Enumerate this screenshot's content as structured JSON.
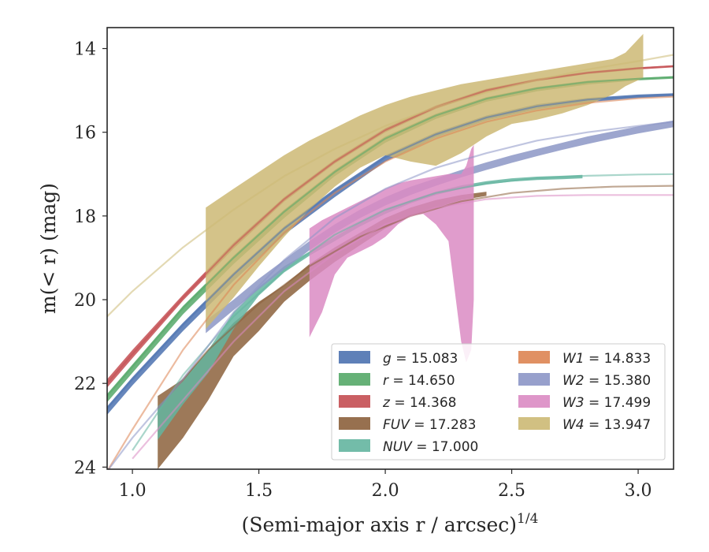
{
  "chart_data": {
    "type": "area",
    "xlabel": "(Semi-major axis r / arcsec)",
    "xlabel_exponent": "1/4",
    "ylabel": "m(< r) (mag)",
    "xlim": [
      0.9,
      3.14
    ],
    "ylim": [
      24.05,
      13.5
    ],
    "y_inverted": true,
    "x_ticks": [
      1.0,
      1.5,
      2.0,
      2.5,
      3.0
    ],
    "x_tick_labels": [
      "1.0",
      "1.5",
      "2.0",
      "2.5",
      "3.0"
    ],
    "y_ticks": [
      14,
      16,
      18,
      20,
      22,
      24
    ],
    "y_tick_labels": [
      "14",
      "16",
      "18",
      "20",
      "22",
      "24"
    ],
    "grid": false,
    "legend_placement": "lower-right",
    "series": [
      {
        "name": "g = 15.083",
        "label_var": "g",
        "label_val": "= 15.083",
        "color": "#4c72b0",
        "model": {
          "x": [
            0.9,
            1.0,
            1.2,
            1.4,
            1.6,
            1.8,
            2.0,
            2.2,
            2.4,
            2.6,
            2.8,
            3.0,
            3.14
          ],
          "y": [
            22.6,
            21.9,
            20.6,
            19.4,
            18.3,
            17.4,
            16.6,
            16.05,
            15.65,
            15.38,
            15.22,
            15.14,
            15.1
          ]
        },
        "band_x": [
          0.9,
          1.0,
          1.2,
          1.4,
          1.6,
          1.8,
          2.0,
          2.2,
          2.4,
          2.6,
          2.8,
          3.0,
          3.14
        ],
        "band_lo": [
          22.55,
          21.85,
          20.55,
          19.35,
          18.25,
          17.35,
          16.55,
          16.0,
          15.6,
          15.33,
          15.18,
          15.1,
          15.07
        ],
        "band_hi": [
          22.75,
          22.05,
          20.75,
          19.55,
          18.45,
          17.55,
          16.7,
          16.12,
          15.72,
          15.45,
          15.28,
          15.18,
          15.14
        ]
      },
      {
        "name": "r = 14.650",
        "label_var": "r",
        "label_val": "= 14.650",
        "color": "#55a868",
        "model": {
          "x": [
            0.9,
            1.0,
            1.2,
            1.4,
            1.6,
            1.8,
            2.0,
            2.2,
            2.4,
            2.6,
            2.8,
            3.0,
            3.14
          ],
          "y": [
            22.3,
            21.6,
            20.2,
            19.0,
            17.9,
            16.95,
            16.15,
            15.6,
            15.2,
            14.95,
            14.8,
            14.72,
            14.68
          ]
        },
        "band_x": [
          0.9,
          1.0,
          1.2,
          1.4,
          1.6,
          1.8,
          2.0,
          2.2,
          2.4,
          2.6,
          2.8,
          3.0,
          3.14
        ],
        "band_lo": [
          22.25,
          21.55,
          20.15,
          18.95,
          17.85,
          16.9,
          16.1,
          15.56,
          15.16,
          14.92,
          14.77,
          14.7,
          14.66
        ],
        "band_hi": [
          22.45,
          21.75,
          20.35,
          19.15,
          18.05,
          17.05,
          16.25,
          15.68,
          15.27,
          15.02,
          14.86,
          14.76,
          14.72
        ]
      },
      {
        "name": "z = 14.368",
        "label_var": "z",
        "label_val": "= 14.368",
        "color": "#c44e52",
        "model": {
          "x": [
            0.9,
            1.0,
            1.2,
            1.4,
            1.6,
            1.8,
            2.0,
            2.2,
            2.4,
            2.6,
            2.8,
            3.0,
            3.14
          ],
          "y": [
            22.0,
            21.3,
            19.95,
            18.7,
            17.6,
            16.7,
            15.95,
            15.4,
            15.0,
            14.75,
            14.58,
            14.47,
            14.42
          ]
        },
        "band_x": [
          0.9,
          1.0,
          1.2,
          1.4,
          1.6,
          1.8,
          2.0,
          2.2,
          2.4,
          2.6,
          2.8,
          3.0,
          3.14
        ],
        "band_lo": [
          21.9,
          21.2,
          19.88,
          18.64,
          17.55,
          16.65,
          15.9,
          15.36,
          14.96,
          14.72,
          14.55,
          14.45,
          14.4
        ],
        "band_hi": [
          22.1,
          21.4,
          20.02,
          18.78,
          17.66,
          16.75,
          16.0,
          15.44,
          15.04,
          14.78,
          14.61,
          14.5,
          14.45
        ]
      },
      {
        "name": "FUV = 17.283",
        "label_var": "FUV",
        "label_val": "= 17.283",
        "color": "#8c613c",
        "model": {
          "x": [
            1.1,
            1.3,
            1.5,
            1.7,
            1.9,
            2.1,
            2.3,
            2.5,
            2.7,
            2.9,
            3.14
          ],
          "y": [
            22.6,
            21.2,
            20.1,
            19.2,
            18.5,
            18.0,
            17.65,
            17.45,
            17.35,
            17.3,
            17.28
          ]
        },
        "band_x": [
          1.1,
          1.2,
          1.3,
          1.4,
          1.5,
          1.6,
          1.7,
          1.8,
          1.9,
          2.0,
          2.1,
          2.2,
          2.3,
          2.4
        ],
        "band_lo": [
          22.3,
          21.9,
          21.2,
          20.55,
          20.05,
          19.65,
          19.15,
          18.75,
          18.4,
          18.05,
          17.8,
          17.62,
          17.5,
          17.42
        ],
        "band_hi": [
          24.05,
          23.3,
          22.4,
          21.35,
          20.75,
          20.05,
          19.55,
          19.1,
          18.7,
          18.3,
          18.0,
          17.8,
          17.62,
          17.52
        ]
      },
      {
        "name": "NUV = 17.000",
        "label_var": "NUV",
        "label_val": "= 17.000",
        "color": "#64b5a0",
        "model": {
          "x": [
            1.0,
            1.2,
            1.4,
            1.6,
            1.8,
            2.0,
            2.2,
            2.4,
            2.6,
            2.8,
            3.0,
            3.14
          ],
          "y": [
            23.6,
            21.8,
            20.4,
            19.3,
            18.45,
            17.85,
            17.45,
            17.22,
            17.1,
            17.04,
            17.01,
            17.0
          ]
        },
        "band_x": [
          1.1,
          1.2,
          1.3,
          1.4,
          1.5,
          1.6,
          1.7,
          1.8,
          1.9,
          2.0,
          2.1,
          2.2,
          2.3,
          2.4,
          2.5,
          2.6,
          2.7,
          2.78
        ],
        "band_lo": [
          22.55,
          21.95,
          21.2,
          20.3,
          19.7,
          19.2,
          18.85,
          18.5,
          18.15,
          17.85,
          17.62,
          17.42,
          17.27,
          17.17,
          17.1,
          17.06,
          17.04,
          17.02
        ],
        "band_hi": [
          23.35,
          22.5,
          21.75,
          20.7,
          19.9,
          19.35,
          18.95,
          18.6,
          18.25,
          17.95,
          17.7,
          17.5,
          17.35,
          17.25,
          17.18,
          17.14,
          17.12,
          17.1
        ]
      },
      {
        "name": "W1 = 14.833",
        "label_var": "W1",
        "label_val": "= 14.833",
        "color": "#dd8452",
        "model": {
          "x": [
            0.9,
            1.0,
            1.2,
            1.4,
            1.6,
            1.8,
            2.0,
            2.2,
            2.4,
            2.6,
            2.8,
            3.0,
            3.14
          ],
          "y": [
            24.1,
            23.1,
            21.2,
            19.65,
            18.4,
            17.45,
            16.7,
            16.15,
            15.75,
            15.48,
            15.3,
            15.19,
            15.15
          ]
        },
        "band_x": [],
        "band_lo": [],
        "band_hi": []
      },
      {
        "name": "W2 = 15.380",
        "label_var": "W2",
        "label_val": "= 15.380",
        "color": "#8c96c6",
        "model": {
          "x": [
            0.9,
            1.0,
            1.2,
            1.4,
            1.6,
            1.8,
            2.0,
            2.2,
            2.4,
            2.6,
            2.8,
            3.0,
            3.14
          ],
          "y": [
            24.1,
            23.3,
            21.9,
            20.3,
            19.05,
            18.05,
            17.35,
            16.85,
            16.5,
            16.2,
            16.0,
            15.85,
            15.75
          ]
        },
        "band_x": [
          1.29,
          1.4,
          1.5,
          1.6,
          1.7,
          1.8,
          1.9,
          2.0,
          2.1,
          2.2,
          2.3,
          2.4,
          2.5,
          2.6,
          2.7,
          2.8,
          2.9,
          3.0,
          3.14
        ],
        "band_lo": [
          20.5,
          20.0,
          19.5,
          19.05,
          18.6,
          18.2,
          17.85,
          17.55,
          17.3,
          17.1,
          16.9,
          16.72,
          16.55,
          16.4,
          16.25,
          16.1,
          15.98,
          15.86,
          15.72
        ],
        "band_hi": [
          20.8,
          20.25,
          19.75,
          19.28,
          18.82,
          18.4,
          18.05,
          17.75,
          17.5,
          17.28,
          17.08,
          16.9,
          16.73,
          16.57,
          16.42,
          16.28,
          16.15,
          16.03,
          15.88
        ]
      },
      {
        "name": "W3 = 17.499",
        "label_var": "W3",
        "label_val": "= 17.499",
        "color": "#da8bc3",
        "model": {
          "x": [
            1.0,
            1.2,
            1.4,
            1.6,
            1.8,
            2.0,
            2.2,
            2.4,
            2.6,
            2.8,
            3.0,
            3.14
          ],
          "y": [
            23.8,
            22.4,
            21.0,
            19.8,
            18.9,
            18.2,
            17.8,
            17.6,
            17.52,
            17.5,
            17.5,
            17.5
          ]
        },
        "band_x": [
          1.7,
          1.75,
          1.8,
          1.85,
          1.9,
          1.95,
          2.0,
          2.05,
          2.1,
          2.15,
          2.2,
          2.25,
          2.3,
          2.32,
          2.34,
          2.35
        ],
        "band_lo": [
          18.3,
          18.1,
          17.95,
          17.8,
          17.65,
          17.5,
          17.35,
          17.22,
          17.15,
          17.1,
          17.05,
          17.0,
          17.0,
          16.8,
          16.4,
          16.3
        ],
        "band_hi": [
          20.9,
          20.3,
          19.4,
          19.0,
          18.85,
          18.7,
          18.5,
          18.2,
          18.0,
          17.95,
          18.2,
          18.6,
          21.0,
          21.5,
          21.2,
          20.0
        ]
      },
      {
        "name": "W4 = 13.947",
        "label_var": "W4",
        "label_val": "= 13.947",
        "color": "#ccb974",
        "model": {
          "x": [
            0.9,
            1.0,
            1.2,
            1.4,
            1.6,
            1.8,
            2.0,
            2.2,
            2.4,
            2.6,
            2.8,
            3.0,
            3.14
          ],
          "y": [
            20.4,
            19.8,
            18.75,
            17.85,
            17.05,
            16.4,
            15.85,
            15.4,
            15.05,
            14.75,
            14.5,
            14.3,
            14.15
          ]
        },
        "band_x": [
          1.29,
          1.4,
          1.5,
          1.6,
          1.7,
          1.8,
          1.9,
          2.0,
          2.1,
          2.2,
          2.3,
          2.4,
          2.5,
          2.6,
          2.7,
          2.8,
          2.9,
          2.95,
          3.02
        ],
        "band_lo": [
          17.8,
          17.35,
          16.95,
          16.55,
          16.2,
          15.9,
          15.6,
          15.35,
          15.15,
          15.0,
          14.85,
          14.75,
          14.65,
          14.55,
          14.45,
          14.35,
          14.25,
          14.1,
          13.65
        ],
        "band_hi": [
          20.7,
          19.95,
          19.2,
          18.5,
          17.85,
          17.3,
          16.85,
          16.55,
          16.7,
          16.8,
          16.5,
          16.1,
          15.8,
          15.7,
          15.55,
          15.35,
          15.1,
          14.9,
          14.7
        ]
      }
    ]
  }
}
